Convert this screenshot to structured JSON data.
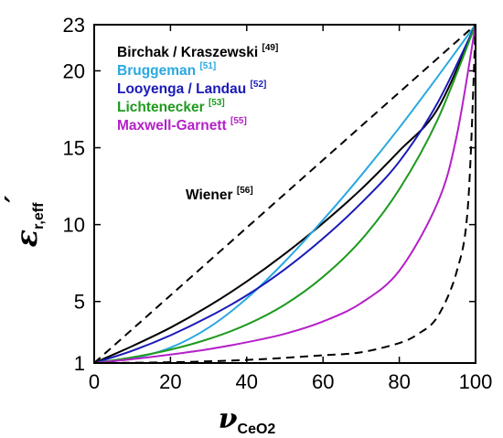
{
  "chart_data": {
    "type": "line",
    "title": "",
    "xlabel": {
      "symbol": "ν",
      "subscript": "CeO2"
    },
    "ylabel": {
      "symbol": "ε",
      "subscript": "r,eff",
      "prime": "′"
    },
    "xlim": [
      0,
      100
    ],
    "ylim": [
      1,
      23
    ],
    "xticks": [
      0,
      20,
      40,
      60,
      80,
      100
    ],
    "yticks": [
      1,
      5,
      10,
      15,
      20,
      23
    ],
    "grid": false,
    "legend_position": "top-left",
    "series": [
      {
        "name": "Birchak / Kraszewski",
        "ref": "[49]",
        "color": "#000000",
        "dash": "solid",
        "x": [
          0,
          10,
          20,
          30,
          40,
          50,
          60,
          70,
          80,
          90,
          100
        ],
        "y": [
          1,
          2.1,
          3.3,
          4.7,
          6.3,
          8.1,
          10.1,
          12.3,
          14.8,
          17.5,
          23
        ]
      },
      {
        "name": "Bruggeman",
        "ref": "[51]",
        "color": "#29a8e0",
        "dash": "solid",
        "x": [
          0,
          10,
          20,
          30,
          40,
          50,
          60,
          70,
          80,
          90,
          100
        ],
        "y": [
          1,
          1.3,
          2.0,
          3.3,
          5.2,
          7.6,
          10.3,
          13.2,
          16.3,
          19.6,
          23
        ]
      },
      {
        "name": "Looyenga / Landau",
        "ref": "[52]",
        "color": "#1a1ab8",
        "dash": "solid",
        "x": [
          0,
          10,
          20,
          30,
          40,
          50,
          60,
          70,
          80,
          90,
          100
        ],
        "y": [
          1,
          1.8,
          2.8,
          4.0,
          5.4,
          7.1,
          9.1,
          11.4,
          14.1,
          17.9,
          23
        ]
      },
      {
        "name": "Lichtenecker",
        "ref": "[53]",
        "color": "#1f9a1f",
        "dash": "solid",
        "x": [
          0,
          10,
          20,
          30,
          40,
          50,
          60,
          70,
          80,
          90,
          100
        ],
        "y": [
          1,
          1.37,
          1.87,
          2.56,
          3.5,
          4.8,
          6.6,
          9.0,
          12.3,
          16.8,
          23
        ]
      },
      {
        "name": "Maxwell-Garnett",
        "ref": "[55]",
        "color": "#b520c8",
        "dash": "solid",
        "x": [
          0,
          10,
          20,
          30,
          40,
          50,
          60,
          70,
          80,
          90,
          95,
          100
        ],
        "y": [
          1,
          1.25,
          1.55,
          1.9,
          2.35,
          2.9,
          3.7,
          4.9,
          7.0,
          11.4,
          15.7,
          23
        ]
      },
      {
        "name": "Wiener",
        "ref": "[56]",
        "color": "#000000",
        "dash": "dashed",
        "x": [
          0,
          100
        ],
        "y": [
          1,
          23
        ]
      },
      {
        "name": "Wiener",
        "ref": "[56]",
        "color": "#000000",
        "dash": "dashed",
        "x": [
          0,
          20,
          40,
          60,
          70,
          80,
          85,
          90,
          95,
          98,
          100
        ],
        "y": [
          1,
          1.05,
          1.2,
          1.5,
          1.7,
          2.3,
          2.9,
          4.0,
          6.9,
          11.2,
          23
        ]
      }
    ],
    "legend": [
      {
        "text": "Birchak / Kraszewski",
        "ref": "[49]",
        "color": "#000000"
      },
      {
        "text": "Bruggeman",
        "ref": "[51]",
        "color": "#29a8e0"
      },
      {
        "text": "Looyenga / Landau",
        "ref": "[52]",
        "color": "#1a1ab8"
      },
      {
        "text": "Lichtenecker",
        "ref": "[53]",
        "color": "#1f9a1f"
      },
      {
        "text": "Maxwell-Garnett",
        "ref": "[55]",
        "color": "#b520c8"
      }
    ],
    "annotations": [
      {
        "text": "Wiener",
        "ref": "[56]",
        "color": "#000000"
      }
    ]
  }
}
